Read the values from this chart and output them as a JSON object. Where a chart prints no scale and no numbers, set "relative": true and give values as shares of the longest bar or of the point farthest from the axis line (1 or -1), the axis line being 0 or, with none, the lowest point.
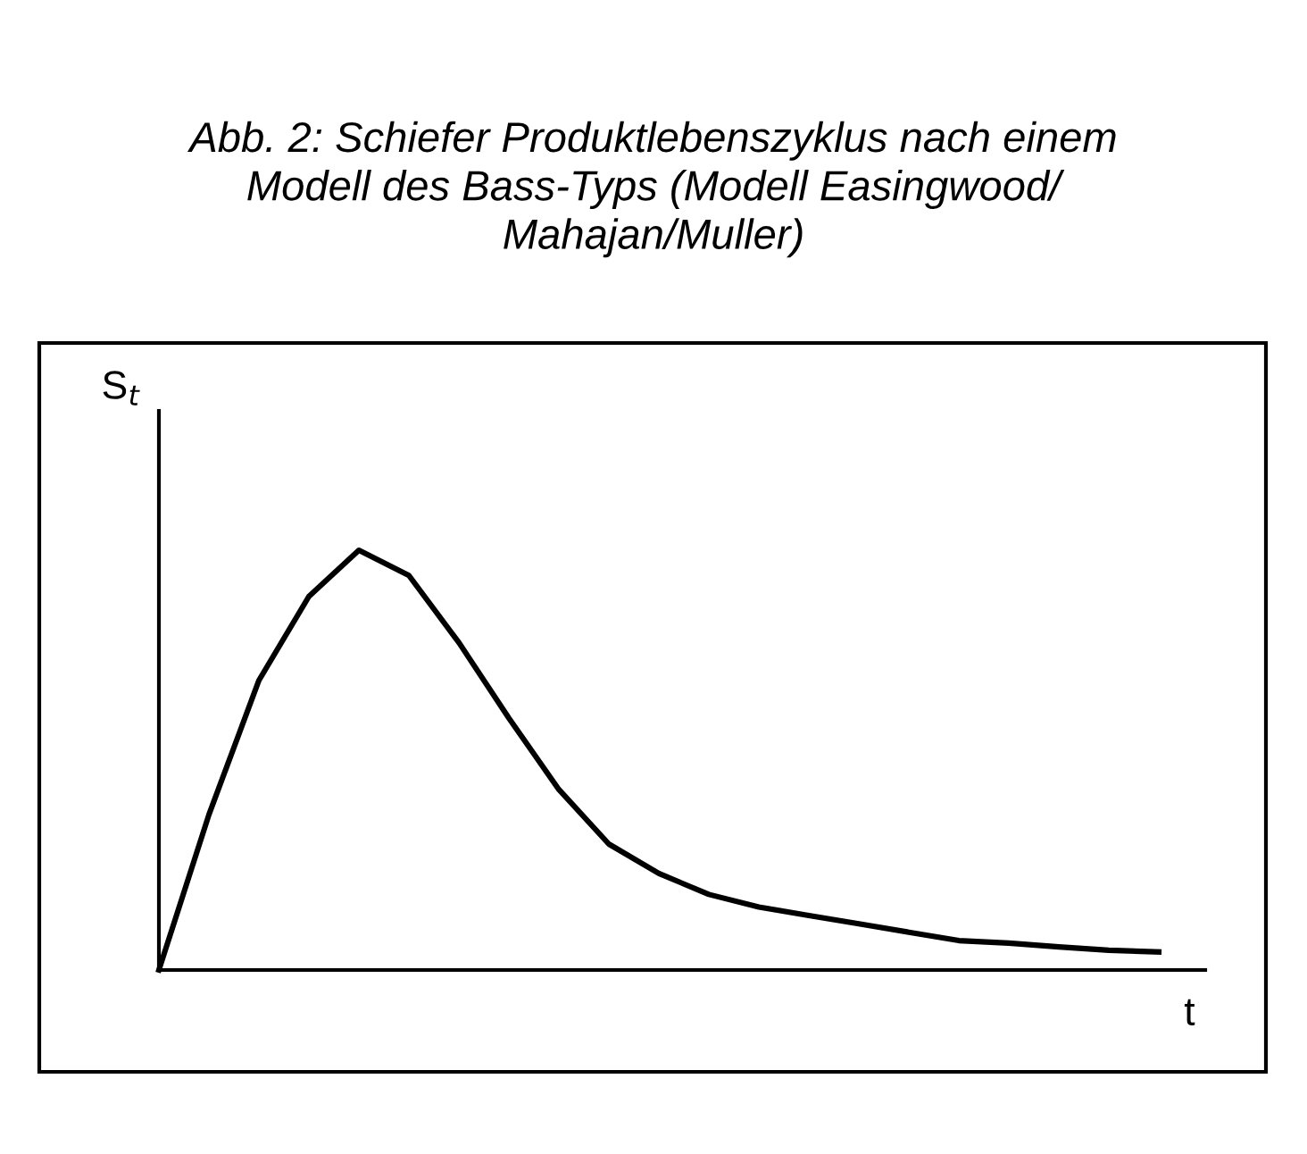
{
  "chart_data": {
    "type": "line",
    "title": "Abb. 2: Schiefer Produktlebenszyklus nach einem\nModell des Bass-Typs (Modell Easingwood/\nMahajan/Muller)",
    "xlabel": "t",
    "ylabel": "S$_{t}$",
    "relative": true,
    "categories": [
      null,
      null,
      null,
      null,
      null,
      null,
      null,
      null,
      null,
      null,
      null,
      null,
      null,
      null,
      null,
      null,
      null,
      null,
      null,
      null,
      null
    ],
    "series": [
      {
        "color": "#000000",
        "values": [
          0,
          0.37,
          0.69,
          0.89,
          1.0,
          0.94,
          0.78,
          0.6,
          0.43,
          0.3,
          0.23,
          0.18,
          0.15,
          0.13,
          0.11,
          0.09,
          0.07,
          0.064,
          0.055,
          0.047,
          0.043
        ]
      }
    ],
    "legend": false,
    "marker": "none",
    "line_style": "solid"
  }
}
